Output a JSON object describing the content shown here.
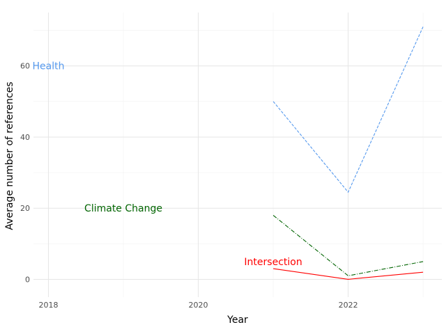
{
  "chart_data": {
    "type": "line",
    "xlabel": "Year",
    "ylabel": "Average number of references",
    "xlim": [
      2017.8,
      2023.25
    ],
    "ylim": [
      -5,
      75
    ],
    "x_ticks": [
      2018,
      2020,
      2022
    ],
    "x_tick_labels": [
      "2018",
      "2020",
      "2022"
    ],
    "y_ticks": [
      0,
      20,
      40,
      60
    ],
    "y_tick_labels": [
      "0",
      "20",
      "40",
      "60"
    ],
    "grid": true,
    "legend": "none",
    "series": [
      {
        "name": "Health",
        "color": "#5599ee",
        "dash": "dashed",
        "x": [
          2021,
          2022,
          2023
        ],
        "y": [
          50,
          24.5,
          71
        ],
        "label_x": 2018,
        "label_y": 60
      },
      {
        "name": "Climate Change",
        "color": "#006400",
        "dash": "dashdot",
        "x": [
          2021,
          2022,
          2023
        ],
        "y": [
          18,
          1,
          5
        ],
        "label_x": 2019,
        "label_y": 20
      },
      {
        "name": "Intersection",
        "color": "#ff0000",
        "dash": "solid",
        "x": [
          2021,
          2022,
          2023
        ],
        "y": [
          3,
          0,
          2
        ],
        "label_x": 2021,
        "label_y": 5
      }
    ]
  }
}
